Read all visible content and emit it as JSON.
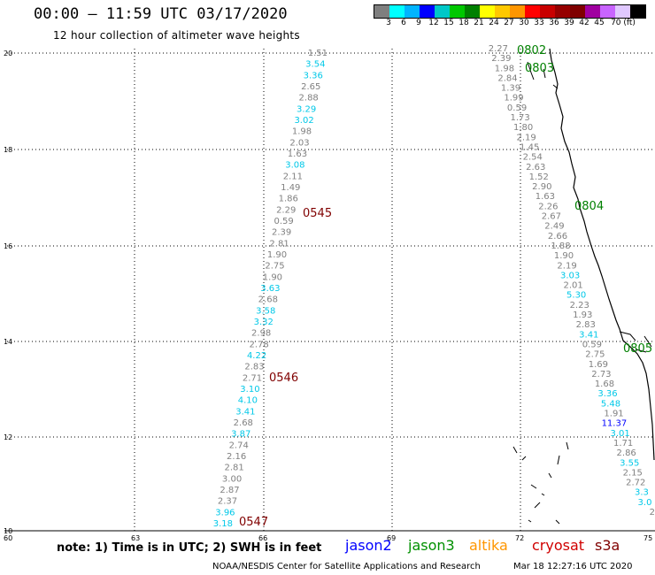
{
  "header": {
    "title": "00:00 – 11:59 UTC 03/17/2020",
    "subtitle": "12 hour collection of altimeter wave heights"
  },
  "legend": {
    "colors": [
      "#7f7f7f",
      "#00ffff",
      "#00b4ff",
      "#0000ff",
      "#00c8c8",
      "#00c800",
      "#008000",
      "#ffff00",
      "#ffc800",
      "#ff9600",
      "#ff0000",
      "#c80000",
      "#960000",
      "#7f0000",
      "#a000a0",
      "#c864ff",
      "#e0c8ff",
      "#000000"
    ],
    "labels": [
      "3",
      "6",
      "9",
      "12",
      "15",
      "18",
      "21",
      "24",
      "27",
      "30",
      "33",
      "36",
      "39",
      "42",
      "45",
      "70 (ft)"
    ],
    "unit": "(ft)"
  },
  "axes": {
    "lat_ticks": [
      "20",
      "18",
      "16",
      "14",
      "12",
      "10"
    ],
    "lon_ticks": [
      "60",
      "63",
      "66",
      "69",
      "72",
      "75"
    ]
  },
  "west_track": {
    "values": [
      {
        "v": "1.51",
        "c": "#808080"
      },
      {
        "v": "3.54",
        "c": "#00c8e8"
      },
      {
        "v": "3.36",
        "c": "#00c8e8"
      },
      {
        "v": "2.65",
        "c": "#808080"
      },
      {
        "v": "2.88",
        "c": "#808080"
      },
      {
        "v": "3.29",
        "c": "#00c8e8"
      },
      {
        "v": "3.02",
        "c": "#00c8e8"
      },
      {
        "v": "1.98",
        "c": "#808080"
      },
      {
        "v": "2.03",
        "c": "#808080"
      },
      {
        "v": "1.63",
        "c": "#808080"
      },
      {
        "v": "3.08",
        "c": "#00c8e8"
      },
      {
        "v": "2.11",
        "c": "#808080"
      },
      {
        "v": "1.49",
        "c": "#808080"
      },
      {
        "v": "1.86",
        "c": "#808080"
      },
      {
        "v": "2.29",
        "c": "#808080"
      },
      {
        "v": "0.59",
        "c": "#808080"
      },
      {
        "v": "2.39",
        "c": "#808080"
      },
      {
        "v": "2.81",
        "c": "#808080"
      },
      {
        "v": "1.90",
        "c": "#808080"
      },
      {
        "v": "2.75",
        "c": "#808080"
      },
      {
        "v": "1.90",
        "c": "#808080"
      },
      {
        "v": "3.63",
        "c": "#00c8e8"
      },
      {
        "v": "2.68",
        "c": "#808080"
      },
      {
        "v": "3.58",
        "c": "#00c8e8"
      },
      {
        "v": "3.32",
        "c": "#00c8e8"
      },
      {
        "v": "2.98",
        "c": "#808080"
      },
      {
        "v": "2.78",
        "c": "#808080"
      },
      {
        "v": "4.22",
        "c": "#00c8e8"
      },
      {
        "v": "2.83",
        "c": "#808080"
      },
      {
        "v": "2.71",
        "c": "#808080"
      },
      {
        "v": "3.10",
        "c": "#00c8e8"
      },
      {
        "v": "4.10",
        "c": "#00c8e8"
      },
      {
        "v": "3.41",
        "c": "#00c8e8"
      },
      {
        "v": "2.68",
        "c": "#808080"
      },
      {
        "v": "3.87",
        "c": "#00c8e8"
      },
      {
        "v": "2.74",
        "c": "#808080"
      },
      {
        "v": "2.16",
        "c": "#808080"
      },
      {
        "v": "2.81",
        "c": "#808080"
      },
      {
        "v": "3.00",
        "c": "#808080"
      },
      {
        "v": "2.87",
        "c": "#808080"
      },
      {
        "v": "2.37",
        "c": "#808080"
      },
      {
        "v": "3.96",
        "c": "#00c8e8"
      },
      {
        "v": "3.18",
        "c": "#00c8e8"
      }
    ],
    "pass_labels": [
      {
        "t": "0545",
        "c": "#800000"
      },
      {
        "t": "0546",
        "c": "#800000"
      },
      {
        "t": "0547",
        "c": "#800000"
      }
    ]
  },
  "east_track": {
    "values": [
      {
        "v": "2.27",
        "c": "#808080"
      },
      {
        "v": "2.39",
        "c": "#808080"
      },
      {
        "v": "1.98",
        "c": "#808080"
      },
      {
        "v": "2.84",
        "c": "#808080"
      },
      {
        "v": "1.39",
        "c": "#808080"
      },
      {
        "v": "1.99",
        "c": "#808080"
      },
      {
        "v": "0.59",
        "c": "#808080"
      },
      {
        "v": "1.73",
        "c": "#808080"
      },
      {
        "v": "1.80",
        "c": "#808080"
      },
      {
        "v": "2.19",
        "c": "#808080"
      },
      {
        "v": "1.45",
        "c": "#808080"
      },
      {
        "v": "2.54",
        "c": "#808080"
      },
      {
        "v": "2.63",
        "c": "#808080"
      },
      {
        "v": "1.52",
        "c": "#808080"
      },
      {
        "v": "2.90",
        "c": "#808080"
      },
      {
        "v": "1.63",
        "c": "#808080"
      },
      {
        "v": "2.26",
        "c": "#808080"
      },
      {
        "v": "2.67",
        "c": "#808080"
      },
      {
        "v": "2.49",
        "c": "#808080"
      },
      {
        "v": "2.66",
        "c": "#808080"
      },
      {
        "v": "1.88",
        "c": "#808080"
      },
      {
        "v": "1.90",
        "c": "#808080"
      },
      {
        "v": "2.19",
        "c": "#808080"
      },
      {
        "v": "3.03",
        "c": "#00c8e8"
      },
      {
        "v": "2.01",
        "c": "#808080"
      },
      {
        "v": "5.30",
        "c": "#00c8e8"
      },
      {
        "v": "2.23",
        "c": "#808080"
      },
      {
        "v": "1.93",
        "c": "#808080"
      },
      {
        "v": "2.83",
        "c": "#808080"
      },
      {
        "v": "3.41",
        "c": "#00c8e8"
      },
      {
        "v": "0.59",
        "c": "#808080"
      },
      {
        "v": "2.75",
        "c": "#808080"
      },
      {
        "v": "1.69",
        "c": "#808080"
      },
      {
        "v": "2.73",
        "c": "#808080"
      },
      {
        "v": "1.68",
        "c": "#808080"
      },
      {
        "v": "3.36",
        "c": "#00c8e8"
      },
      {
        "v": "5.48",
        "c": "#00c8e8"
      },
      {
        "v": "1.91",
        "c": "#808080"
      },
      {
        "v": "11.37",
        "c": "#0000ff"
      },
      {
        "v": "3.01",
        "c": "#00c8e8"
      },
      {
        "v": "1.71",
        "c": "#808080"
      },
      {
        "v": "2.86",
        "c": "#808080"
      },
      {
        "v": "3.55",
        "c": "#00c8e8"
      },
      {
        "v": "2.15",
        "c": "#808080"
      },
      {
        "v": "2.72",
        "c": "#808080"
      },
      {
        "v": "3.3",
        "c": "#00c8e8"
      },
      {
        "v": "3.0",
        "c": "#00c8e8"
      },
      {
        "v": "2",
        "c": "#808080"
      }
    ],
    "pass_labels": [
      {
        "t": "0802",
        "c": "#008000"
      },
      {
        "t": "0803",
        "c": "#008000"
      },
      {
        "t": "0804",
        "c": "#008000"
      },
      {
        "t": "0805",
        "c": "#008000"
      }
    ]
  },
  "footer": {
    "note": "note: 1) Time is in UTC; 2) SWH is in feet",
    "satellites": [
      {
        "name": "jason2",
        "color": "#0000ff"
      },
      {
        "name": "jason3",
        "color": "#009000"
      },
      {
        "name": "altika",
        "color": "#ff9600"
      },
      {
        "name": "cryosat",
        "color": "#d00000"
      },
      {
        "name": "s3a",
        "color": "#800000"
      }
    ],
    "credit": "NOAA/NESDIS Center for Satellite Applications and Research",
    "timestamp": "Mar 18 12:27:16 UTC 2020"
  }
}
